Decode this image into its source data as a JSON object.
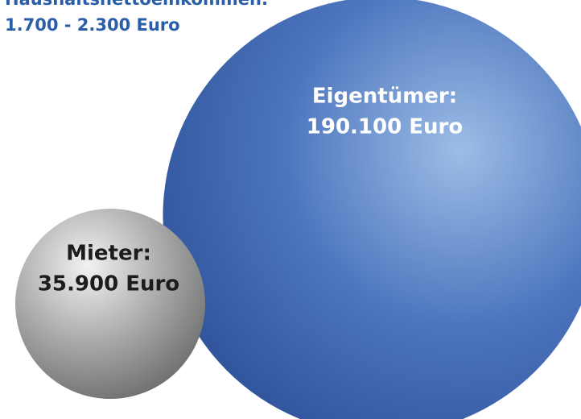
{
  "chart_data": {
    "type": "bubble",
    "title": "Haushaltsnettoeinkommen:",
    "subtitle": "1.700 - 2.300 Euro",
    "categories": [
      "Mieter:",
      "Eigentümer:"
    ],
    "values": [
      35900,
      190100
    ],
    "value_labels": [
      "35.900 Euro",
      "190.100 Euro"
    ],
    "colors": [
      "#9a9a9a",
      "#3f68b4"
    ]
  }
}
